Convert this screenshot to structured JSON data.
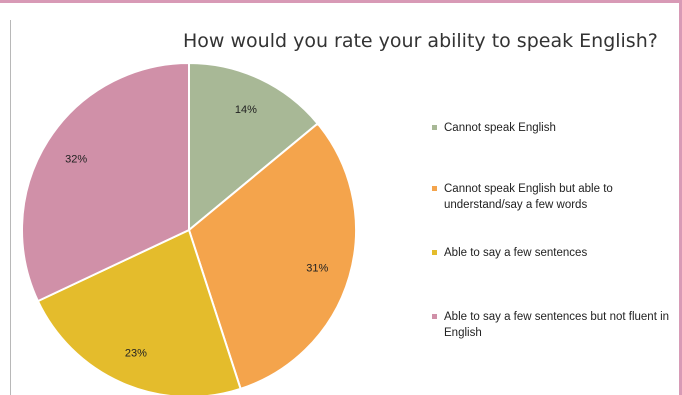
{
  "chart_data": {
    "type": "pie",
    "title": "How would you rate your ability to speak English?",
    "slices": [
      {
        "label": "Cannot speak English",
        "value": 14,
        "value_label": "14%",
        "color": "#a8b896"
      },
      {
        "label": "Cannot speak English but able to understand/say a few words",
        "value": 31,
        "value_label": "31%",
        "color": "#f4a44c"
      },
      {
        "label": "Able to say a few sentences",
        "value": 23,
        "value_label": "23%",
        "color": "#e4bc2c"
      },
      {
        "label": "Able to say a few sentences but not fluent in English",
        "value": 32,
        "value_label": "32%",
        "color": "#d090a8"
      }
    ],
    "start_angle_deg": 0,
    "direction": "clockwise",
    "legend_position": "right"
  }
}
